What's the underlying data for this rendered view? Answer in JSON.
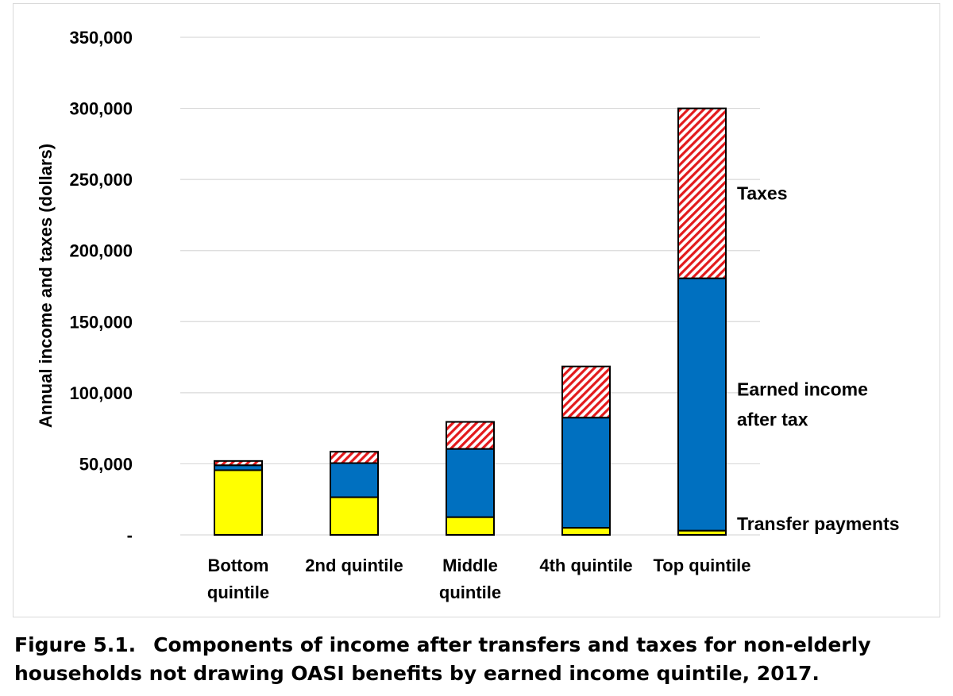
{
  "chart_data": {
    "type": "bar",
    "stacked": true,
    "categories": [
      "Bottom quintile",
      "2nd quintile",
      "Middle quintile",
      "4th quintile",
      "Top quintile"
    ],
    "category_lines": [
      [
        "Bottom",
        "quintile"
      ],
      [
        "2nd quintile"
      ],
      [
        "Middle",
        "quintile"
      ],
      [
        "4th quintile"
      ],
      [
        "Top quintile"
      ]
    ],
    "series": [
      {
        "name": "Transfer payments",
        "color": "#ffff00",
        "pattern": "solid",
        "values": [
          45500,
          26500,
          12500,
          5000,
          3000
        ]
      },
      {
        "name": "Earned income after tax",
        "color": "#0070c0",
        "pattern": "solid",
        "values": [
          3500,
          24000,
          48000,
          77500,
          177500
        ]
      },
      {
        "name": "Taxes",
        "color": "#ff0000",
        "pattern": "hatched",
        "values": [
          3000,
          8000,
          19000,
          36000,
          119500
        ]
      }
    ],
    "legend_labels": [
      {
        "series": "Taxes",
        "lines": [
          "Taxes"
        ]
      },
      {
        "series": "Earned income after tax",
        "lines": [
          "Earned income",
          "after tax"
        ]
      },
      {
        "series": "Transfer payments",
        "lines": [
          "Transfer payments"
        ]
      }
    ],
    "ylabel": "Annual income and taxes (dollars)",
    "xlabel": "",
    "ylim": [
      0,
      350000
    ],
    "yticks": [
      0,
      50000,
      100000,
      150000,
      200000,
      250000,
      300000,
      350000
    ],
    "ytick_labels": [
      "-",
      "50,000",
      "100,000",
      "150,000",
      "200,000",
      "250,000",
      "300,000",
      "350,000"
    ],
    "grid": true,
    "legend_position": "right, inline beside top bar"
  },
  "caption": {
    "lead": "Figure 5.1.",
    "text": "Components of income after transfers and taxes for non-elderly households not drawing OASI benefits by earned income quintile, 2017."
  }
}
